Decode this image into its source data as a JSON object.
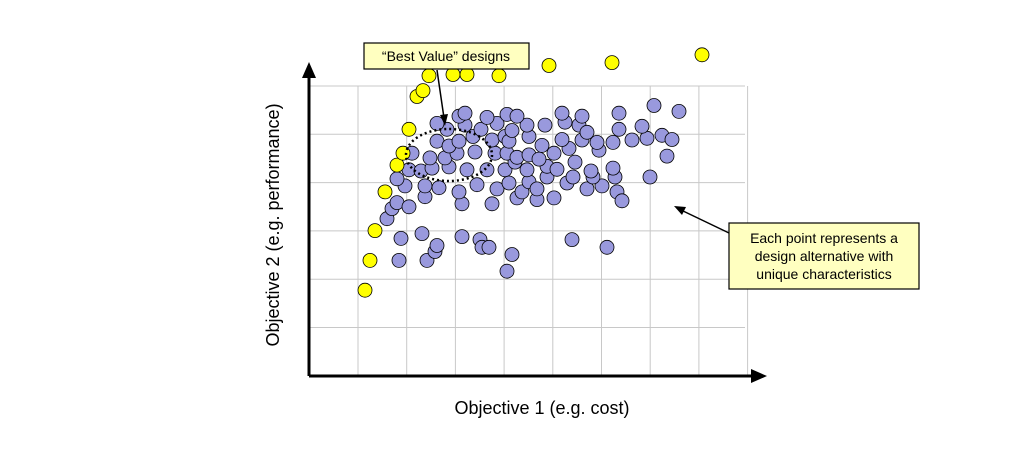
{
  "chart_data": {
    "type": "scatter",
    "title": "",
    "xlabel": "Objective 1 (e.g. cost)",
    "ylabel": "Objective 2 (e.g. performance)",
    "grid": true,
    "axis_style": "arrows, no tick labels",
    "colors": {
      "pareto_fill": "#ffff00",
      "dominated_fill": "#9999dd",
      "marker_stroke": "#000000",
      "grid": "#c8c8c8",
      "callout_fill": "#ffffc0"
    },
    "series": [
      {
        "role": "pareto-front",
        "color": "#ffff00",
        "points": [
          [
            8,
            60
          ],
          [
            13,
            110
          ],
          [
            18,
            160
          ],
          [
            28,
            225
          ],
          [
            40,
            270
          ],
          [
            46,
            290
          ],
          [
            52,
            330
          ],
          [
            60,
            385
          ],
          [
            66,
            395
          ],
          [
            72,
            420
          ],
          [
            96,
            422
          ],
          [
            110,
            422
          ],
          [
            142,
            420
          ],
          [
            192,
            437
          ],
          [
            255,
            442
          ],
          [
            345,
            455
          ]
        ]
      },
      {
        "role": "design-alternatives",
        "color": "#9999dd",
        "points": [
          [
            42,
            110
          ],
          [
            70,
            110
          ],
          [
            78,
            125
          ],
          [
            80,
            135
          ],
          [
            44,
            147
          ],
          [
            65,
            155
          ],
          [
            105,
            150
          ],
          [
            123,
            145
          ],
          [
            125,
            132
          ],
          [
            132,
            132
          ],
          [
            155,
            120
          ],
          [
            150,
            92
          ],
          [
            215,
            145
          ],
          [
            250,
            132
          ],
          [
            30,
            180
          ],
          [
            35,
            197
          ],
          [
            40,
            207
          ],
          [
            52,
            200
          ],
          [
            68,
            217
          ],
          [
            105,
            205
          ],
          [
            135,
            205
          ],
          [
            160,
            215
          ],
          [
            180,
            212
          ],
          [
            197,
            215
          ],
          [
            210,
            240
          ],
          [
            230,
            230
          ],
          [
            245,
            235
          ],
          [
            260,
            225
          ],
          [
            265,
            210
          ],
          [
            48,
            235
          ],
          [
            68,
            235
          ],
          [
            82,
            232
          ],
          [
            102,
            225
          ],
          [
            120,
            237
          ],
          [
            140,
            230
          ],
          [
            152,
            240
          ],
          [
            165,
            225
          ],
          [
            172,
            242
          ],
          [
            180,
            230
          ],
          [
            190,
            250
          ],
          [
            216,
            250
          ],
          [
            236,
            250
          ],
          [
            258,
            250
          ],
          [
            293,
            250
          ],
          [
            40,
            247
          ],
          [
            52,
            262
          ],
          [
            64,
            260
          ],
          [
            75,
            265
          ],
          [
            92,
            267
          ],
          [
            110,
            262
          ],
          [
            130,
            262
          ],
          [
            148,
            262
          ],
          [
            158,
            275
          ],
          [
            170,
            262
          ],
          [
            190,
            268
          ],
          [
            200,
            263
          ],
          [
            218,
            275
          ],
          [
            234,
            260
          ],
          [
            256,
            265
          ],
          [
            310,
            285
          ],
          [
            55,
            290
          ],
          [
            73,
            282
          ],
          [
            88,
            282
          ],
          [
            100,
            290
          ],
          [
            118,
            292
          ],
          [
            138,
            290
          ],
          [
            150,
            290
          ],
          [
            160,
            283
          ],
          [
            172,
            287
          ],
          [
            182,
            280
          ],
          [
            197,
            290
          ],
          [
            212,
            298
          ],
          [
            242,
            295
          ],
          [
            80,
            310
          ],
          [
            92,
            302
          ],
          [
            102,
            310
          ],
          [
            116,
            318
          ],
          [
            135,
            312
          ],
          [
            148,
            318
          ],
          [
            152,
            310
          ],
          [
            172,
            318
          ],
          [
            185,
            303
          ],
          [
            205,
            313
          ],
          [
            225,
            312
          ],
          [
            240,
            308
          ],
          [
            256,
            308
          ],
          [
            275,
            312
          ],
          [
            290,
            315
          ],
          [
            305,
            320
          ],
          [
            315,
            313
          ],
          [
            90,
            330
          ],
          [
            108,
            337
          ],
          [
            124,
            330
          ],
          [
            140,
            340
          ],
          [
            155,
            328
          ],
          [
            170,
            337
          ],
          [
            188,
            337
          ],
          [
            208,
            342
          ],
          [
            222,
            337
          ],
          [
            230,
            325
          ],
          [
            262,
            330
          ],
          [
            285,
            335
          ],
          [
            80,
            340
          ],
          [
            102,
            352
          ],
          [
            130,
            350
          ],
          [
            150,
            355
          ],
          [
            160,
            352
          ],
          [
            205,
            357
          ],
          [
            225,
            352
          ],
          [
            108,
            357
          ],
          [
            262,
            357
          ],
          [
            297,
            370
          ],
          [
            322,
            360
          ]
        ]
      }
    ],
    "annotations": [
      {
        "name": "best-value",
        "text": "“Best Value” designs"
      },
      {
        "name": "point-note",
        "lines": [
          "Each point represents a",
          "design alternative with",
          "unique characteristics"
        ]
      }
    ]
  }
}
